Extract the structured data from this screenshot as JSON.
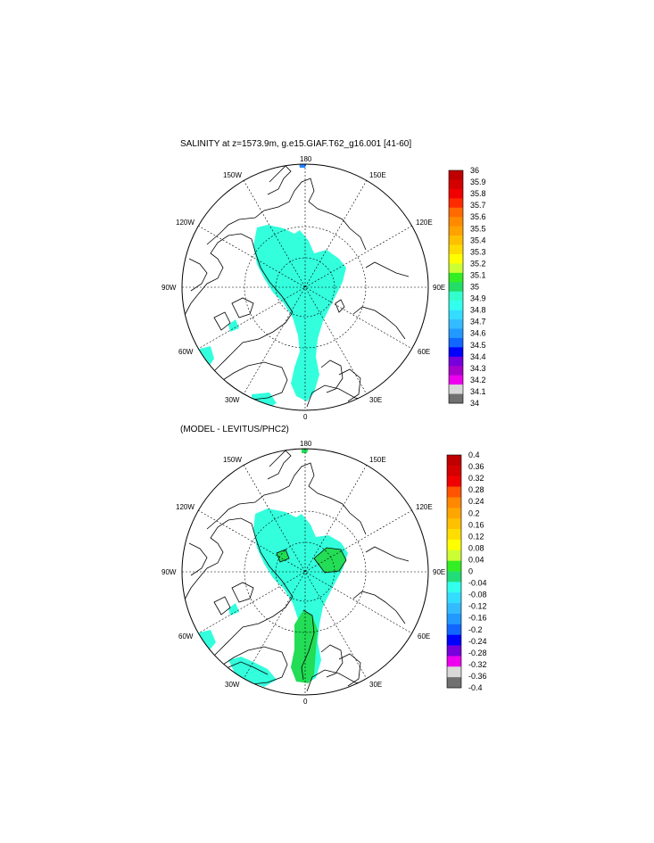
{
  "panels": [
    {
      "title": "SALINITY at z=1573.9m, g.e15.GIAF.T62_g16.001 [41-60]",
      "map_labels": {
        "top": "180",
        "bottom": "0",
        "left": "90W",
        "right": "90E",
        "ul1": "150W",
        "ul2": "120W",
        "ll1": "60W",
        "ll2": "30W",
        "ur1": "150E",
        "ur2": "120E",
        "lr1": "60E",
        "lr2": "30E"
      },
      "colorbar": {
        "colors": [
          "#bf0000",
          "#d40000",
          "#f00000",
          "#ff2a00",
          "#ff6a00",
          "#ff8a00",
          "#ffa200",
          "#ffc000",
          "#ffdc00",
          "#ffff00",
          "#ccff33",
          "#33ee22",
          "#22dd66",
          "#33ffcc",
          "#33ffee",
          "#33ddff",
          "#33bbff",
          "#2299ff",
          "#1166ff",
          "#0000ff",
          "#7700dd",
          "#aa00cc",
          "#ee00ee",
          "#d8d8d8",
          "#707070"
        ],
        "labels": [
          "36",
          "35.9",
          "35.8",
          "35.7",
          "35.6",
          "35.5",
          "35.4",
          "35.3",
          "35.2",
          "35.1",
          "35",
          "34.9",
          "34.8",
          "34.7",
          "34.6",
          "34.5",
          "34.4",
          "34.3",
          "34.2",
          "34.1",
          "34"
        ]
      }
    },
    {
      "title": "(MODEL - LEVITUS/PHC2)",
      "map_labels": {
        "top": "180",
        "bottom": "0",
        "left": "90W",
        "right": "90E",
        "ul1": "150W",
        "ul2": "120W",
        "ll1": "60W",
        "ll2": "30W",
        "ur1": "150E",
        "ur2": "120E",
        "lr1": "60E",
        "lr2": "30E"
      },
      "colorbar": {
        "colors": [
          "#bf0000",
          "#d40000",
          "#f00000",
          "#ff5500",
          "#ff8800",
          "#ffa500",
          "#ffc000",
          "#ffdd00",
          "#ffff00",
          "#ccff33",
          "#33ee22",
          "#22dd77",
          "#33ffee",
          "#33ddff",
          "#33bbff",
          "#2299ff",
          "#1166ff",
          "#0000ff",
          "#7700dd",
          "#ee00ee",
          "#d8d8d8",
          "#707070"
        ],
        "labels": [
          "0.4",
          "0.36",
          "0.32",
          "0.28",
          "0.24",
          "0.2",
          "0.16",
          "0.12",
          "0.08",
          "0.04",
          "0",
          "-0.04",
          "-0.08",
          "-0.12",
          "-0.16",
          "-0.2",
          "-0.24",
          "-0.28",
          "-0.32",
          "-0.36",
          "-0.4"
        ]
      }
    }
  ]
}
